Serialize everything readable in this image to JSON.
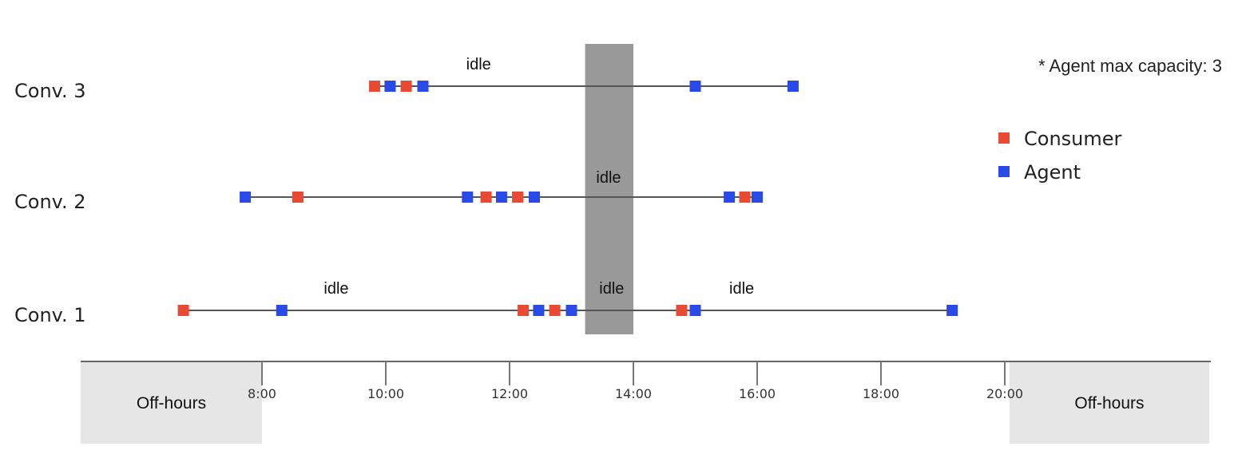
{
  "chart_data": {
    "type": "timeline",
    "note": "* Agent max capacity: 3",
    "colors": {
      "consumer": "#e84a33",
      "agent": "#2a4ae8",
      "idle_band": "#999999",
      "offhours": "#e6e6e6",
      "line": "#555555"
    },
    "x_range": [
      6.5,
      21.6
    ],
    "ticks": [
      {
        "value": 8,
        "label": "8:00"
      },
      {
        "value": 10,
        "label": "10:00"
      },
      {
        "value": 12,
        "label": "12:00"
      },
      {
        "value": 14,
        "label": "14:00"
      },
      {
        "value": 16,
        "label": "16:00"
      },
      {
        "value": 18,
        "label": "18:00"
      },
      {
        "value": 20,
        "label": "20:00"
      }
    ],
    "offhours": [
      {
        "label": "Off-hours",
        "from": 6.5,
        "to": 8.0
      },
      {
        "label": "Off-hours",
        "from": 20.05,
        "to": 21.6
      }
    ],
    "idle_band": {
      "from": 13.22,
      "to": 14.0
    },
    "legend": [
      {
        "name": "Consumer",
        "key": "consumer"
      },
      {
        "name": "Agent",
        "key": "agent"
      }
    ],
    "conversations": [
      {
        "label": "Conv. 3",
        "idle_labels": [
          {
            "text": "idle",
            "at": 11.5
          }
        ],
        "events": [
          {
            "type": "consumer",
            "t": 9.82
          },
          {
            "type": "agent",
            "t": 10.07
          },
          {
            "type": "consumer",
            "t": 10.33
          },
          {
            "type": "agent",
            "t": 10.6
          },
          {
            "type": "agent",
            "t": 15.0
          },
          {
            "type": "agent",
            "t": 16.58
          }
        ]
      },
      {
        "label": "Conv. 2",
        "idle_labels": [
          {
            "text": "idle",
            "at": 13.6
          }
        ],
        "events": [
          {
            "type": "agent",
            "t": 7.73
          },
          {
            "type": "consumer",
            "t": 8.58
          },
          {
            "type": "agent",
            "t": 11.32
          },
          {
            "type": "consumer",
            "t": 11.62
          },
          {
            "type": "agent",
            "t": 11.87
          },
          {
            "type": "consumer",
            "t": 12.13
          },
          {
            "type": "agent",
            "t": 12.4
          },
          {
            "type": "agent",
            "t": 15.55
          },
          {
            "type": "consumer",
            "t": 15.8
          },
          {
            "type": "agent",
            "t": 16.0
          }
        ]
      },
      {
        "label": "Conv. 1",
        "idle_labels": [
          {
            "text": "idle",
            "at": 9.2
          },
          {
            "text": "idle",
            "at": 13.65
          },
          {
            "text": "idle",
            "at": 15.75
          }
        ],
        "events": [
          {
            "type": "consumer",
            "t": 6.73
          },
          {
            "type": "agent",
            "t": 8.32
          },
          {
            "type": "consumer",
            "t": 12.22
          },
          {
            "type": "agent",
            "t": 12.47
          },
          {
            "type": "consumer",
            "t": 12.73
          },
          {
            "type": "agent",
            "t": 13.0
          },
          {
            "type": "consumer",
            "t": 14.78
          },
          {
            "type": "agent",
            "t": 15.0
          },
          {
            "type": "agent",
            "t": 19.15
          }
        ]
      }
    ]
  }
}
